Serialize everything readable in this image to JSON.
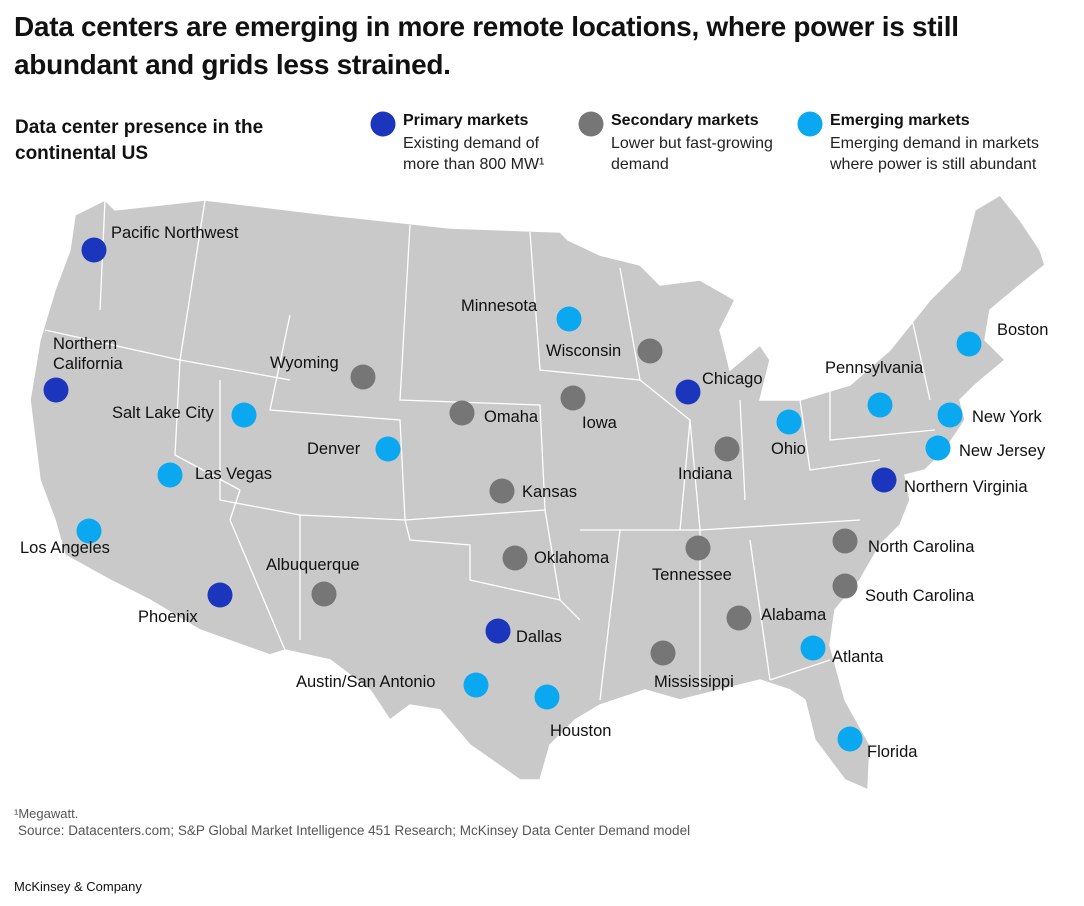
{
  "title": "Data centers are emerging in more remote locations, where power is still abundant and grids less strained.",
  "subtitle": "Data center presence in the continental US",
  "legend": [
    {
      "name": "Primary markets",
      "description": "Existing demand of more than 800 MW¹",
      "color": "#1b36bd",
      "markets": [
        "Pacific Northwest",
        "Northern California",
        "Phoenix",
        "Dallas",
        "Chicago",
        "Northern Virginia"
      ]
    },
    {
      "name": "Secondary markets",
      "description": "Lower but fast-growing demand",
      "color": "#767676",
      "markets": [
        "Wyoming",
        "Omaha",
        "Iowa",
        "Wisconsin",
        "Indiana",
        "Kansas",
        "Oklahoma",
        "Albuquerque",
        "Tennessee",
        "Mississippi",
        "Alabama",
        "North Carolina",
        "South Carolina"
      ]
    },
    {
      "name": "Emerging markets",
      "description": "Emerging demand in markets where power is still abundant",
      "color": "#0aa8f0",
      "markets": [
        "Minnesota",
        "Salt Lake City",
        "Denver",
        "Las Vegas",
        "Los Angeles",
        "Ohio",
        "Pennsylvania",
        "Boston",
        "New York",
        "New Jersey",
        "Atlanta",
        "Florida",
        "Austin/San Antonio",
        "Houston"
      ]
    }
  ],
  "footnote": "¹Megawatt.",
  "source": "Source: Datacenters.com; S&P Global Market Intelligence 451 Research; McKinsey Data Center Demand model",
  "brand": "McKinsey & Company"
}
